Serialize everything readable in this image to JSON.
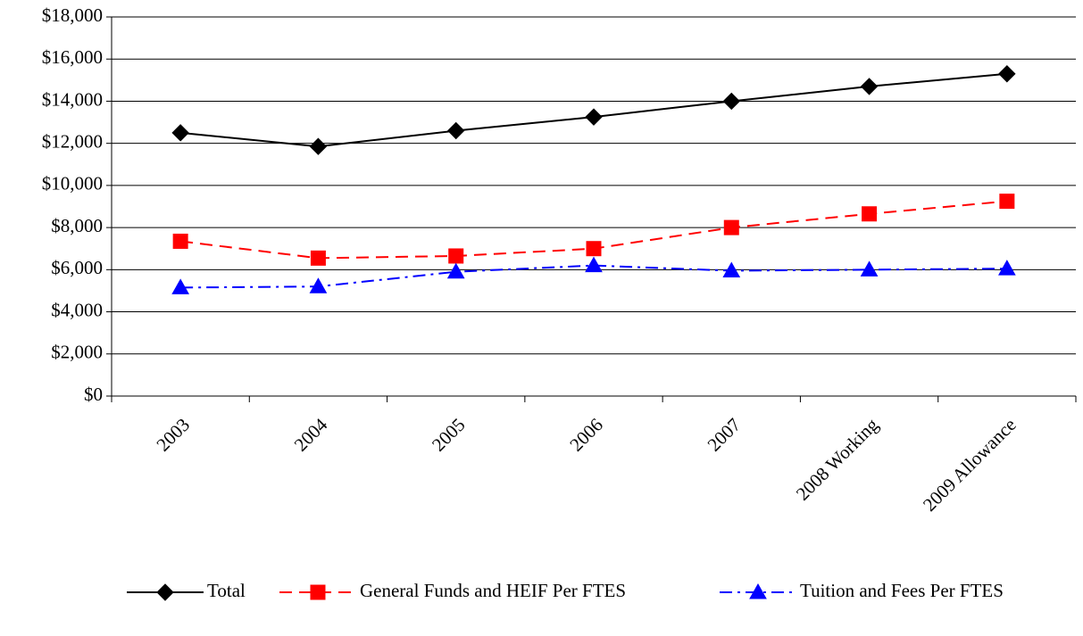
{
  "chart_data": {
    "type": "line",
    "categories": [
      "2003",
      "2004",
      "2005",
      "2006",
      "2007",
      "2008 Working",
      "2009 Allowance"
    ],
    "series": [
      {
        "name": "Total",
        "color": "#000000",
        "values": [
          12500,
          11850,
          12600,
          13250,
          14000,
          14700,
          15300
        ]
      },
      {
        "name": "General Funds and HEIF Per FTES",
        "color": "#ff0000",
        "values": [
          7350,
          6550,
          6650,
          7000,
          8000,
          8650,
          9250
        ]
      },
      {
        "name": "Tuition and Fees Per FTES",
        "color": "#0000ff",
        "values": [
          5150,
          5200,
          5900,
          6200,
          5950,
          6000,
          6050
        ]
      }
    ],
    "ylim": [
      0,
      18000
    ],
    "yticks": [
      {
        "value": 0,
        "label": "$0"
      },
      {
        "value": 2000,
        "label": "$2,000"
      },
      {
        "value": 4000,
        "label": "$4,000"
      },
      {
        "value": 6000,
        "label": "$6,000"
      },
      {
        "value": 8000,
        "label": "$8,000"
      },
      {
        "value": 10000,
        "label": "$10,000"
      },
      {
        "value": 12000,
        "label": "$12,000"
      },
      {
        "value": 14000,
        "label": "$14,000"
      },
      {
        "value": 16000,
        "label": "$16,000"
      },
      {
        "value": 18000,
        "label": "$18,000"
      }
    ],
    "grid": true,
    "legend": "bottom"
  }
}
